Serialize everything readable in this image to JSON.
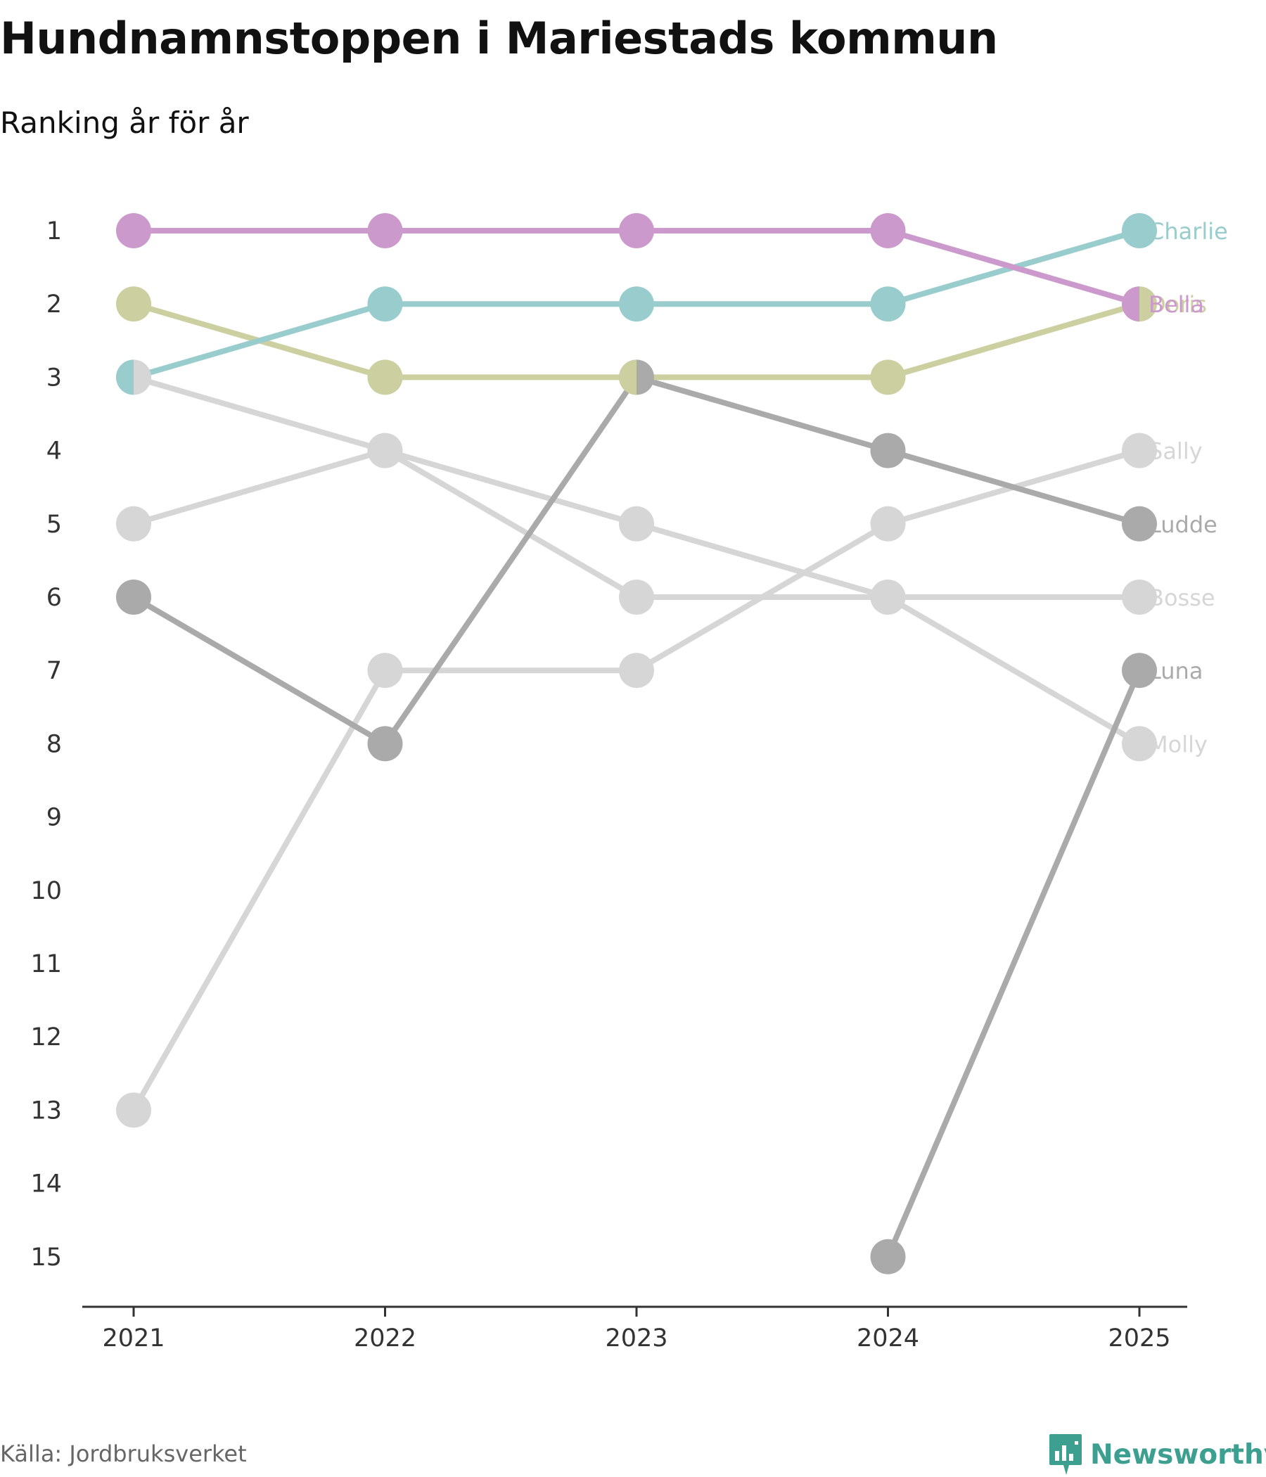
{
  "header": {
    "title": "Hundnamnstoppen i Mariestads kommun",
    "subtitle": "Ranking år för år"
  },
  "footer": {
    "source": "Källa: Jordbruksverket",
    "brand": "Newsworthy",
    "brand_color": "#3d9f8f",
    "brand_icon": "bar-chart-speech-bubble-icon"
  },
  "chart_data": {
    "type": "line",
    "subtype": "bump",
    "title": "Hundnamnstoppen i Mariestads kommun",
    "subtitle": "Ranking år för år",
    "xlabel": "",
    "ylabel": "",
    "x": [
      "2021",
      "2022",
      "2023",
      "2024",
      "2025"
    ],
    "y_ticks": [
      1,
      2,
      3,
      4,
      5,
      6,
      7,
      8,
      9,
      10,
      11,
      12,
      13,
      14,
      15
    ],
    "ylim": [
      1,
      15
    ],
    "y_reversed": true,
    "grid": false,
    "series": [
      {
        "name": "Sally",
        "values": [
          13,
          7,
          7,
          5,
          4
        ],
        "color": "#d6d6d6"
      },
      {
        "name": "Bosse",
        "values": [
          5,
          4,
          5,
          6,
          6
        ],
        "color": "#d6d6d6"
      },
      {
        "name": "Molly",
        "values": [
          3,
          4,
          6,
          6,
          8
        ],
        "color": "#d6d6d6"
      },
      {
        "name": "Luna",
        "values": [
          null,
          null,
          null,
          15,
          7
        ],
        "color": "#aaaaaa"
      },
      {
        "name": "Ludde",
        "values": [
          6,
          8,
          3,
          4,
          5
        ],
        "color": "#aaaaaa"
      },
      {
        "name": "Doris",
        "values": [
          2,
          3,
          3,
          3,
          2
        ],
        "color": "#cccf9f"
      },
      {
        "name": "Charlie",
        "values": [
          3,
          2,
          2,
          2,
          1
        ],
        "color": "#99cccc"
      },
      {
        "name": "Bella",
        "values": [
          1,
          1,
          1,
          1,
          2
        ],
        "color": "#cc99cc"
      }
    ]
  }
}
